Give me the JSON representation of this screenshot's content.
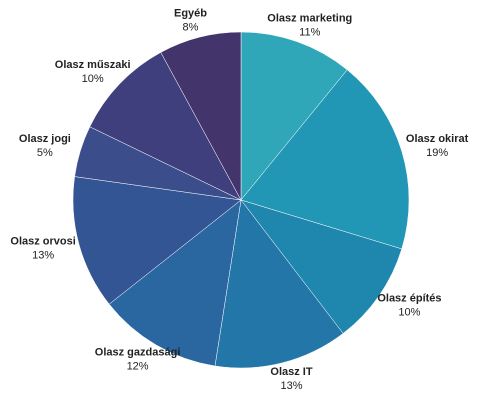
{
  "chart_data": {
    "type": "pie",
    "categories": [
      "Olasz marketing",
      "Olasz okirat",
      "Olasz építés",
      "Olasz IT",
      "Olasz gazdasági",
      "Olasz orvosi",
      "Olasz jogi",
      "Olasz műszaki",
      "Egyéb"
    ],
    "values": [
      11,
      19,
      10,
      13,
      12,
      13,
      5,
      10,
      8
    ],
    "value_labels": [
      "11%",
      "19%",
      "10%",
      "13%",
      "12%",
      "13%",
      "5%",
      "10%",
      "8%"
    ],
    "colors": [
      "#2fa7b9",
      "#2196b5",
      "#1f86ad",
      "#2276a8",
      "#2a66a0",
      "#345594",
      "#3b4d8a",
      "#3f3f7e",
      "#43346c"
    ]
  }
}
